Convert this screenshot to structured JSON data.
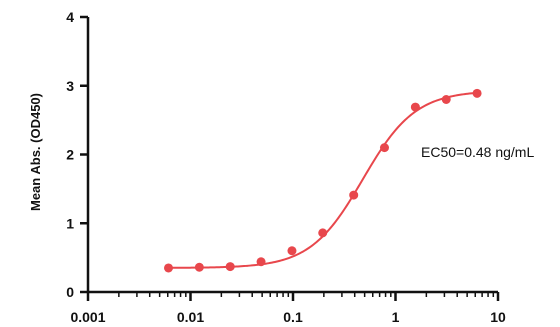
{
  "chart_data": {
    "type": "scatter",
    "title": "",
    "xlabel": "",
    "ylabel": "Mean Abs. (OD450)",
    "x_scale": "log",
    "xlim": [
      0.001,
      10
    ],
    "ylim": [
      0,
      4
    ],
    "x_ticks": [
      "0.001",
      "0.01",
      "0.1",
      "1",
      "10"
    ],
    "y_ticks": [
      "0",
      "1",
      "2",
      "3",
      "4"
    ],
    "grid": false,
    "legend": "none",
    "colors": {
      "series": "#e8474c",
      "axis": "#111111"
    },
    "series": [
      {
        "x": [
          0.0061,
          0.0122,
          0.0244,
          0.0488,
          0.0977,
          0.195,
          0.391,
          0.781,
          1.563,
          3.125,
          6.25
        ],
        "y": [
          0.35,
          0.36,
          0.37,
          0.44,
          0.6,
          0.86,
          1.41,
          2.1,
          2.69,
          2.8,
          2.89
        ]
      }
    ],
    "fit_curve": {
      "bottom": 0.35,
      "top": 2.93,
      "ec50": 0.48,
      "hill": 1.7
    },
    "annotations": [
      {
        "text": "EC50=0.48 ng/mL"
      }
    ]
  }
}
